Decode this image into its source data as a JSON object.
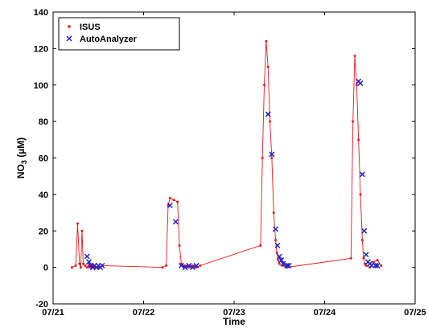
{
  "chart_data": {
    "type": "scatter",
    "title": "",
    "xlabel": "Time",
    "ylabel": "NO",
    "ylabel_sub": "3",
    "ylabel_unit": " (µM)",
    "xlim": [
      "07/21",
      "07/25"
    ],
    "ylim": [
      -20,
      140
    ],
    "x_ticks": [
      "07/21",
      "07/22",
      "07/23",
      "07/24",
      "07/25"
    ],
    "y_ticks": [
      -20,
      0,
      20,
      40,
      60,
      80,
      100,
      120,
      140
    ],
    "grid": false,
    "legend_position": "top-left",
    "colors": {
      "ISUS": "#e31a1c",
      "AutoAnalyzer": "#1f1fcc"
    },
    "series": [
      {
        "name": "ISUS",
        "marker": "dot",
        "x": [
          "07/21 05:00",
          "07/21 06:00",
          "07/21 06:30",
          "07/21 07:00",
          "07/21 07:20",
          "07/21 07:40",
          "07/21 08:00",
          "07/21 08:30",
          "07/21 09:00",
          "07/21 09:30",
          "07/21 10:00",
          "07/21 10:30",
          "07/21 11:00",
          "07/21 12:00",
          "07/21 13:00",
          "07/22 05:00",
          "07/22 06:00",
          "07/22 06:30",
          "07/22 07:00",
          "07/22 08:00",
          "07/22 09:00",
          "07/22 09:30",
          "07/22 10:00",
          "07/22 10:20",
          "07/22 10:40",
          "07/22 11:00",
          "07/22 12:00",
          "07/22 13:00",
          "07/22 14:00",
          "07/22 15:00",
          "07/23 07:00",
          "07/23 07:30",
          "07/23 08:00",
          "07/23 08:30",
          "07/23 09:00",
          "07/23 09:30",
          "07/23 10:00",
          "07/23 10:30",
          "07/23 11:00",
          "07/23 11:20",
          "07/23 11:40",
          "07/23 12:00",
          "07/23 13:00",
          "07/23 14:00",
          "07/24 07:00",
          "07/24 07:30",
          "07/24 08:00",
          "07/24 08:30",
          "07/24 09:00",
          "07/24 09:30",
          "07/24 10:00",
          "07/24 10:20",
          "07/24 10:40",
          "07/24 11:00",
          "07/24 12:00",
          "07/24 13:00",
          "07/24 14:00",
          "07/24 15:00"
        ],
        "y": [
          0,
          1,
          24,
          2,
          0,
          20,
          2,
          1,
          0,
          1,
          0,
          1,
          0,
          0,
          1,
          0,
          1,
          34,
          38,
          37,
          36,
          12,
          2,
          1,
          0,
          1,
          0,
          1,
          0,
          1,
          12,
          60,
          100,
          124,
          110,
          80,
          60,
          30,
          15,
          8,
          4,
          2,
          1,
          0,
          5,
          80,
          116,
          100,
          70,
          40,
          15,
          5,
          2,
          1,
          0,
          3,
          4,
          1
        ]
      },
      {
        "name": "AutoAnalyzer",
        "marker": "x",
        "x": [
          "07/21 09:00",
          "07/21 09:30",
          "07/21 10:00",
          "07/21 10:30",
          "07/21 11:00",
          "07/21 11:30",
          "07/21 12:00",
          "07/21 12:30",
          "07/21 13:00",
          "07/22 07:00",
          "07/22 08:30",
          "07/22 10:00",
          "07/22 11:00",
          "07/22 12:00",
          "07/22 13:00",
          "07/22 14:00",
          "07/23 09:00",
          "07/23 10:00",
          "07/23 11:00",
          "07/23 11:30",
          "07/23 12:00",
          "07/23 12:30",
          "07/23 13:00",
          "07/23 14:00",
          "07/23 14:30",
          "07/24 09:00",
          "07/24 09:30",
          "07/24 10:00",
          "07/24 10:30",
          "07/24 11:00",
          "07/24 11:30",
          "07/24 12:00",
          "07/24 12:30",
          "07/24 13:30",
          "07/24 14:00"
        ],
        "y": [
          6,
          3,
          1,
          0,
          1,
          0,
          1,
          0,
          1,
          34,
          25,
          1,
          0,
          1,
          0,
          1,
          84,
          62,
          21,
          12,
          6,
          4,
          2,
          1,
          1,
          102,
          101,
          51,
          20,
          7,
          3,
          2,
          1,
          1,
          1
        ]
      }
    ]
  }
}
